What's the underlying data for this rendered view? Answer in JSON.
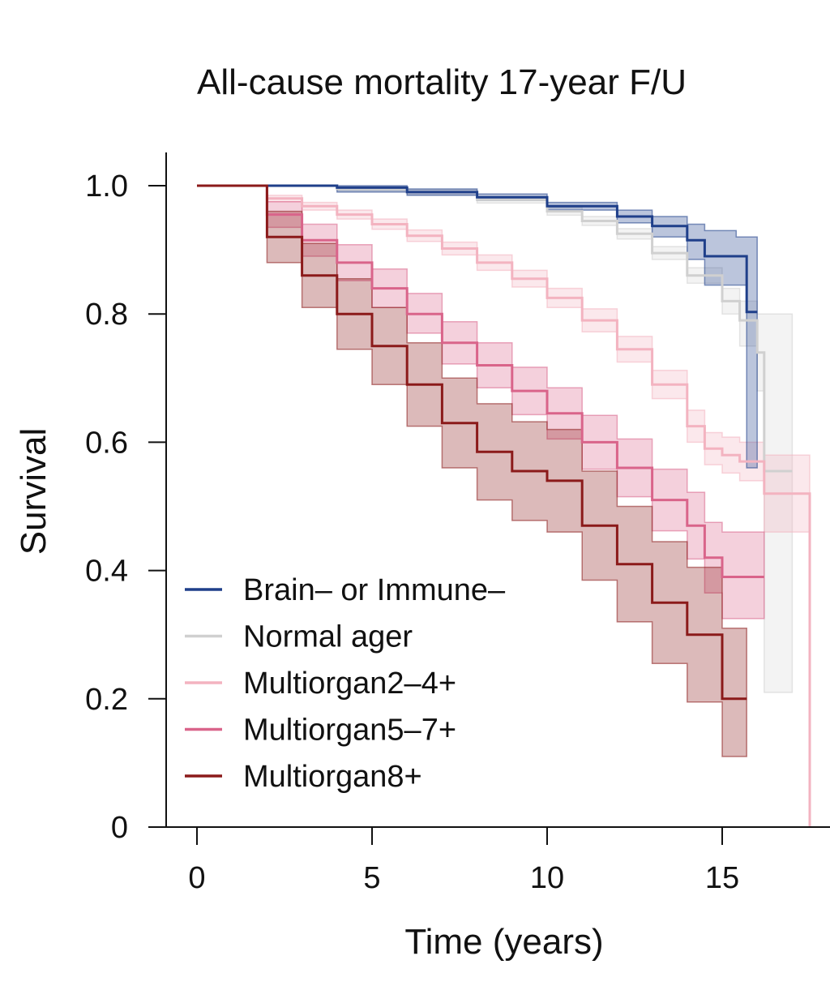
{
  "chart_data": {
    "type": "line",
    "subtype": "kaplan-meier",
    "title": "All-cause mortality 17-year F/U",
    "xlabel": "Time (years)",
    "ylabel": "Survival",
    "xlim": [
      -0.9,
      18.4
    ],
    "ylim": [
      0,
      1.05
    ],
    "xticks": [
      0,
      5,
      10,
      15
    ],
    "xtick_labels": [
      "0",
      "5",
      "10",
      "15"
    ],
    "yticks": [
      0,
      0.2,
      0.4,
      0.6,
      0.8,
      1.0
    ],
    "ytick_labels": [
      "0",
      "0.2",
      "0.4",
      "0.6",
      "0.8",
      "1.0"
    ],
    "legend_position": "bottom-left",
    "series": [
      {
        "name": "Brain– or Immune–",
        "color": "#1f3f8a",
        "x": [
          0,
          1,
          4,
          6,
          8,
          10,
          12,
          13,
          14,
          14.5,
          15.4,
          15.7,
          16
        ],
        "y": [
          1.0,
          1.0,
          0.997,
          0.99,
          0.982,
          0.968,
          0.952,
          0.937,
          0.915,
          0.89,
          0.89,
          0.803,
          0.803
        ],
        "lower": [
          1.0,
          1.0,
          0.99,
          0.985,
          0.977,
          0.962,
          0.942,
          0.92,
          0.885,
          0.845,
          0.845,
          0.56,
          0.56
        ],
        "upper": [
          1.0,
          1.0,
          1.0,
          0.995,
          0.987,
          0.974,
          0.962,
          0.952,
          0.94,
          0.93,
          0.92,
          0.92,
          0.92
        ]
      },
      {
        "name": "Normal ager",
        "color": "#d0d0d0",
        "x": [
          0,
          1,
          4,
          6,
          8,
          10,
          11,
          12,
          13,
          14,
          15,
          15.5,
          16,
          16.2,
          17
        ],
        "y": [
          1.0,
          1.0,
          0.995,
          0.99,
          0.978,
          0.96,
          0.945,
          0.925,
          0.895,
          0.86,
          0.82,
          0.79,
          0.74,
          0.555,
          0.555
        ],
        "lower": [
          1.0,
          1.0,
          0.992,
          0.986,
          0.973,
          0.954,
          0.938,
          0.917,
          0.885,
          0.848,
          0.8,
          0.75,
          0.68,
          0.21,
          0.21
        ],
        "upper": [
          1.0,
          1.0,
          0.998,
          0.994,
          0.983,
          0.966,
          0.952,
          0.933,
          0.905,
          0.872,
          0.84,
          0.82,
          0.8,
          0.8,
          0.8
        ]
      },
      {
        "name": "Multiorgan2–4+",
        "color": "#f3b3c0",
        "x": [
          0,
          1,
          2,
          3,
          4,
          5,
          6,
          7,
          8,
          9,
          10,
          11,
          12,
          13,
          14,
          14.5,
          15,
          15.5,
          16.2,
          17.5,
          17.5
        ],
        "y": [
          1.0,
          1.0,
          0.98,
          0.968,
          0.955,
          0.94,
          0.922,
          0.902,
          0.88,
          0.855,
          0.825,
          0.79,
          0.745,
          0.69,
          0.625,
          0.59,
          0.58,
          0.57,
          0.52,
          0.52,
          0.0
        ],
        "lower": [
          1.0,
          1.0,
          0.975,
          0.962,
          0.948,
          0.932,
          0.913,
          0.892,
          0.868,
          0.842,
          0.81,
          0.772,
          0.725,
          0.668,
          0.6,
          0.565,
          0.552,
          0.54,
          0.46,
          0.46,
          0.0
        ],
        "upper": [
          1.0,
          1.0,
          0.985,
          0.974,
          0.962,
          0.948,
          0.931,
          0.912,
          0.892,
          0.868,
          0.84,
          0.808,
          0.765,
          0.712,
          0.65,
          0.615,
          0.608,
          0.6,
          0.58,
          0.58,
          0.0
        ]
      },
      {
        "name": "Multiorgan5–7+",
        "color": "#d9648a",
        "x": [
          0,
          1,
          2,
          3,
          4,
          5,
          6,
          7,
          8,
          9,
          10,
          11,
          12,
          13,
          14,
          14.5,
          15,
          16.2
        ],
        "y": [
          1.0,
          1.0,
          0.955,
          0.915,
          0.88,
          0.84,
          0.8,
          0.755,
          0.72,
          0.68,
          0.645,
          0.6,
          0.56,
          0.51,
          0.47,
          0.42,
          0.39,
          0.39
        ],
        "lower": [
          1.0,
          1.0,
          0.935,
          0.89,
          0.852,
          0.81,
          0.77,
          0.722,
          0.685,
          0.643,
          0.605,
          0.558,
          0.515,
          0.462,
          0.418,
          0.365,
          0.325,
          0.325
        ],
        "upper": [
          1.0,
          1.0,
          0.975,
          0.94,
          0.908,
          0.87,
          0.832,
          0.788,
          0.755,
          0.717,
          0.685,
          0.642,
          0.605,
          0.558,
          0.522,
          0.475,
          0.46,
          0.46
        ]
      },
      {
        "name": "Multiorgan8+",
        "color": "#8b1a1a",
        "x": [
          0,
          1,
          2,
          3,
          4,
          5,
          6,
          7,
          8,
          9,
          10,
          11,
          12,
          13,
          14,
          15,
          15.7
        ],
        "y": [
          1.0,
          1.0,
          0.92,
          0.86,
          0.8,
          0.75,
          0.69,
          0.63,
          0.585,
          0.555,
          0.54,
          0.47,
          0.41,
          0.35,
          0.3,
          0.2,
          0.2
        ],
        "lower": [
          1.0,
          1.0,
          0.88,
          0.81,
          0.745,
          0.69,
          0.625,
          0.56,
          0.51,
          0.478,
          0.46,
          0.385,
          0.32,
          0.255,
          0.195,
          0.11,
          0.11
        ],
        "upper": [
          1.0,
          1.0,
          0.96,
          0.91,
          0.855,
          0.81,
          0.755,
          0.7,
          0.66,
          0.632,
          0.62,
          0.555,
          0.5,
          0.445,
          0.405,
          0.31,
          0.31
        ]
      }
    ]
  }
}
